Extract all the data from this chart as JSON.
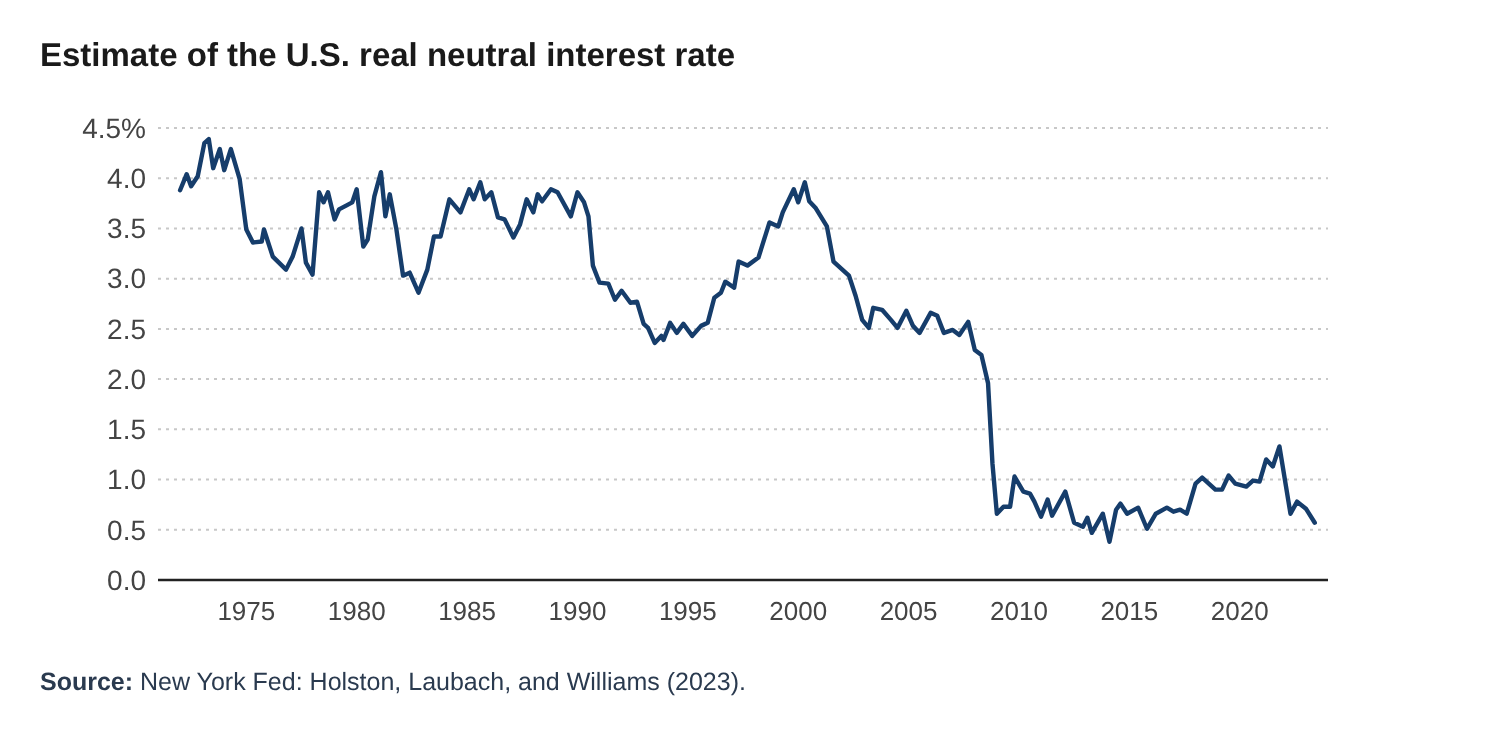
{
  "chart_data": {
    "type": "line",
    "title": "Estimate of the U.S. real neutral interest rate",
    "annotations": [
      "Source: New York Fed: Holston, Laubach, and Williams (2023)."
    ],
    "xlim": [
      1971,
      2024
    ],
    "xticks": [
      1975,
      1980,
      1985,
      1990,
      1995,
      2000,
      2005,
      2010,
      2015,
      2020
    ],
    "ylim": [
      0,
      4.5
    ],
    "yticks": [
      {
        "value": 0,
        "label": "0.0"
      },
      {
        "value": 0.5,
        "label": "0.5"
      },
      {
        "value": 1,
        "label": "1.0"
      },
      {
        "value": 1.5,
        "label": "1.5"
      },
      {
        "value": 2,
        "label": "2.0"
      },
      {
        "value": 2.5,
        "label": "2.5"
      },
      {
        "value": 3,
        "label": "3.0"
      },
      {
        "value": 3.5,
        "label": "3.5"
      },
      {
        "value": 4,
        "label": "4.0"
      },
      {
        "value": 4.5,
        "label": "4.5%"
      }
    ],
    "grid": "y",
    "marker": "none",
    "line_style": "solid",
    "series": [
      {
        "color": "#163d6b",
        "x": [
          1972.0,
          1972.3,
          1972.5,
          1972.8,
          1973.1,
          1973.3,
          1973.5,
          1973.8,
          1974.0,
          1974.3,
          1974.7,
          1975.0,
          1975.3,
          1975.7,
          1975.8,
          1976.2,
          1976.8,
          1977.1,
          1977.5,
          1977.7,
          1978.0,
          1978.3,
          1978.5,
          1978.7,
          1979.0,
          1979.2,
          1979.8,
          1980.0,
          1980.3,
          1980.5,
          1980.8,
          1981.1,
          1981.3,
          1981.5,
          1981.8,
          1982.1,
          1982.4,
          1982.8,
          1983.2,
          1983.5,
          1983.8,
          1984.2,
          1984.7,
          1985.1,
          1985.3,
          1985.6,
          1985.8,
          1986.1,
          1986.4,
          1986.7,
          1987.1,
          1987.4,
          1987.7,
          1988.0,
          1988.2,
          1988.4,
          1988.8,
          1989.1,
          1989.7,
          1990.0,
          1990.3,
          1990.5,
          1990.7,
          1991.0,
          1991.4,
          1991.7,
          1992.0,
          1992.4,
          1992.7,
          1993.0,
          1993.2,
          1993.5,
          1993.8,
          1993.9,
          1994.2,
          1994.5,
          1994.8,
          1995.2,
          1995.6,
          1995.9,
          1996.2,
          1996.5,
          1996.7,
          1997.1,
          1997.3,
          1997.7,
          1998.2,
          1998.7,
          1999.1,
          1999.3,
          1999.8,
          2000.0,
          2000.3,
          2000.5,
          2000.8,
          2001.3,
          2001.6,
          2002.0,
          2002.3,
          2002.6,
          2002.9,
          2003.2,
          2003.4,
          2003.8,
          2004.2,
          2004.5,
          2004.9,
          2005.2,
          2005.5,
          2006.0,
          2006.3,
          2006.6,
          2007.0,
          2007.3,
          2007.7,
          2008.0,
          2008.3,
          2008.6,
          2008.8,
          2009.0,
          2009.3,
          2009.6,
          2009.8,
          2010.2,
          2010.5,
          2010.7,
          2011.0,
          2011.3,
          2011.5,
          2012.1,
          2012.5,
          2012.9,
          2013.1,
          2013.3,
          2013.8,
          2014.1,
          2014.4,
          2014.6,
          2014.9,
          2015.4,
          2015.8,
          2016.2,
          2016.7,
          2017.0,
          2017.3,
          2017.6,
          2018.0,
          2018.3,
          2018.9,
          2019.2,
          2019.5,
          2019.8,
          2020.3,
          2020.6,
          2020.9,
          2021.2,
          2021.5,
          2021.8,
          2022.3,
          2022.6,
          2023.0,
          2023.4
        ],
        "values": [
          3.88,
          4.04,
          3.92,
          4.02,
          4.35,
          4.39,
          4.1,
          4.29,
          4.08,
          4.29,
          3.99,
          3.49,
          3.36,
          3.37,
          3.49,
          3.22,
          3.09,
          3.22,
          3.5,
          3.16,
          3.04,
          3.86,
          3.76,
          3.86,
          3.59,
          3.69,
          3.76,
          3.89,
          3.32,
          3.39,
          3.82,
          4.06,
          3.62,
          3.84,
          3.49,
          3.03,
          3.06,
          2.86,
          3.09,
          3.42,
          3.42,
          3.79,
          3.66,
          3.89,
          3.79,
          3.96,
          3.79,
          3.86,
          3.61,
          3.59,
          3.41,
          3.54,
          3.79,
          3.66,
          3.84,
          3.77,
          3.89,
          3.86,
          3.62,
          3.86,
          3.76,
          3.62,
          3.13,
          2.96,
          2.95,
          2.79,
          2.88,
          2.76,
          2.77,
          2.55,
          2.51,
          2.36,
          2.43,
          2.39,
          2.56,
          2.46,
          2.55,
          2.43,
          2.53,
          2.56,
          2.81,
          2.86,
          2.97,
          2.91,
          3.17,
          3.13,
          3.21,
          3.56,
          3.52,
          3.66,
          3.89,
          3.76,
          3.96,
          3.77,
          3.7,
          3.52,
          3.17,
          3.09,
          3.03,
          2.83,
          2.59,
          2.51,
          2.71,
          2.69,
          2.59,
          2.51,
          2.68,
          2.53,
          2.46,
          2.66,
          2.63,
          2.46,
          2.49,
          2.44,
          2.57,
          2.29,
          2.24,
          1.96,
          1.16,
          0.66,
          0.73,
          0.73,
          1.03,
          0.88,
          0.86,
          0.78,
          0.63,
          0.8,
          0.64,
          0.88,
          0.57,
          0.53,
          0.62,
          0.47,
          0.66,
          0.38,
          0.7,
          0.76,
          0.66,
          0.72,
          0.51,
          0.66,
          0.72,
          0.68,
          0.7,
          0.66,
          0.96,
          1.02,
          0.9,
          0.9,
          1.04,
          0.96,
          0.93,
          0.99,
          0.98,
          1.2,
          1.13,
          1.33,
          0.66,
          0.78,
          0.71,
          0.57
        ]
      }
    ]
  }
}
